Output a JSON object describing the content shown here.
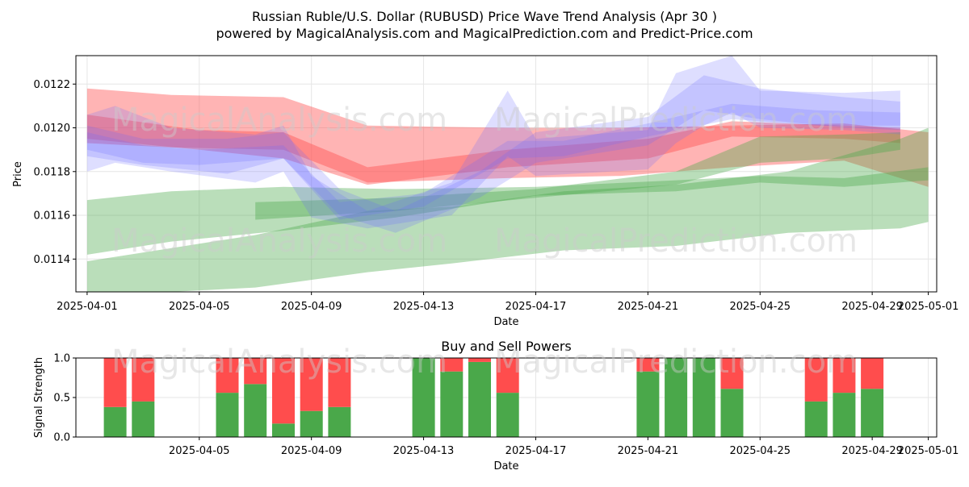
{
  "title": {
    "line1": "Russian Ruble/U.S. Dollar (RUBUSD) Price Wave Trend Analysis (Apr 30 )",
    "line2": "powered by MagicalAnalysis.com and MagicalPrediction.com and Predict-Price.com"
  },
  "watermarks": [
    "MagicalAnalysis.com",
    "MagicalPrediction.com"
  ],
  "colors": {
    "red": "#ff4d4d",
    "green": "#4aa84a",
    "blue": "#6b6bff"
  },
  "chart_data": [
    {
      "type": "area",
      "title": "",
      "xlabel": "Date",
      "ylabel": "Price",
      "x_range_days": [
        -0.4,
        30.3
      ],
      "ylim": [
        0.01125,
        0.01233
      ],
      "x_ticks": [
        "2025-04-01",
        "2025-04-05",
        "2025-04-09",
        "2025-04-13",
        "2025-04-17",
        "2025-04-21",
        "2025-04-25",
        "2025-04-29",
        "2025-05-01"
      ],
      "y_ticks": [
        "0.0114",
        "0.0116",
        "0.0118",
        "0.0120",
        "0.0122"
      ],
      "grid": true,
      "bands": [
        {
          "color": "red",
          "x": [
            "2025-04-01",
            "2025-04-04",
            "2025-04-08",
            "2025-04-11",
            "2025-04-16",
            "2025-04-20",
            "2025-04-24",
            "2025-04-28",
            "2025-05-01"
          ],
          "upper": [
            0.01218,
            0.01215,
            0.01214,
            0.01201,
            0.012,
            0.012,
            0.01201,
            0.01202,
            0.01198
          ],
          "lower": [
            0.01193,
            0.01191,
            0.0119,
            0.01175,
            0.01177,
            0.01178,
            0.01182,
            0.01185,
            0.01173
          ]
        },
        {
          "color": "red",
          "x": [
            "2025-04-01",
            "2025-04-05",
            "2025-04-08",
            "2025-04-11",
            "2025-04-16",
            "2025-04-21",
            "2025-04-24",
            "2025-04-28",
            "2025-04-30"
          ],
          "upper": [
            0.01206,
            0.01199,
            0.01198,
            0.01182,
            0.0119,
            0.01195,
            0.01203,
            0.01201,
            0.012
          ],
          "lower": [
            0.01195,
            0.0119,
            0.01186,
            0.01174,
            0.01182,
            0.01186,
            0.01196,
            0.01195,
            0.01193
          ]
        },
        {
          "color": "green",
          "x": [
            "2025-04-01",
            "2025-04-04",
            "2025-04-08",
            "2025-04-12",
            "2025-04-17",
            "2025-04-22",
            "2025-04-25",
            "2025-04-28",
            "2025-05-01"
          ],
          "upper": [
            0.01167,
            0.01171,
            0.01173,
            0.01172,
            0.01173,
            0.01176,
            0.01178,
            0.01177,
            0.01182
          ],
          "lower": [
            0.01142,
            0.01148,
            0.01153,
            0.01159,
            0.01169,
            0.01171,
            0.01175,
            0.01173,
            0.01176
          ]
        },
        {
          "color": "green",
          "x": [
            "2025-04-01",
            "2025-04-04",
            "2025-04-07",
            "2025-04-11",
            "2025-04-14",
            "2025-04-18",
            "2025-04-22",
            "2025-04-26",
            "2025-04-30",
            "2025-05-01"
          ],
          "upper": [
            0.01139,
            0.01145,
            0.01151,
            0.01162,
            0.01164,
            0.01171,
            0.01174,
            0.0118,
            0.01195,
            0.012
          ],
          "lower": [
            0.01125,
            0.01125,
            0.01127,
            0.01134,
            0.01138,
            0.01144,
            0.01146,
            0.01152,
            0.01154,
            0.01157
          ]
        },
        {
          "color": "green",
          "x": [
            "2025-04-07",
            "2025-04-12",
            "2025-04-17",
            "2025-04-22",
            "2025-04-25",
            "2025-04-28",
            "2025-04-30"
          ],
          "upper": [
            0.01166,
            0.01168,
            0.01172,
            0.0118,
            0.01196,
            0.01197,
            0.01198
          ],
          "lower": [
            0.01158,
            0.01162,
            0.01168,
            0.01174,
            0.01184,
            0.01186,
            0.0119
          ]
        },
        {
          "color": "blue",
          "x": [
            "2025-04-01",
            "2025-04-02",
            "2025-04-04",
            "2025-04-07",
            "2025-04-08",
            "2025-04-09",
            "2025-04-11",
            "2025-04-14",
            "2025-04-16",
            "2025-04-17",
            "2025-04-21",
            "2025-04-22",
            "2025-04-23",
            "2025-04-24",
            "2025-04-25",
            "2025-04-28",
            "2025-04-30"
          ],
          "upper": [
            0.01206,
            0.0121,
            0.012,
            0.01197,
            0.01201,
            0.01178,
            0.01162,
            0.01175,
            0.01217,
            0.01195,
            0.01199,
            0.01225,
            0.01229,
            0.01233,
            0.01217,
            0.01216,
            0.01217
          ],
          "lower": [
            0.0118,
            0.01184,
            0.0118,
            0.01175,
            0.0118,
            0.01159,
            0.01154,
            0.0116,
            0.01187,
            0.01178,
            0.01181,
            0.01193,
            0.01201,
            0.01207,
            0.012,
            0.01199,
            0.01197
          ]
        },
        {
          "color": "blue",
          "x": [
            "2025-04-01",
            "2025-04-03",
            "2025-04-06",
            "2025-04-08",
            "2025-04-10",
            "2025-04-12",
            "2025-04-15",
            "2025-04-17",
            "2025-04-21",
            "2025-04-23",
            "2025-04-25",
            "2025-04-28",
            "2025-04-30"
          ],
          "upper": [
            0.01201,
            0.01195,
            0.01195,
            0.01198,
            0.01172,
            0.01162,
            0.0118,
            0.01198,
            0.01205,
            0.01224,
            0.01218,
            0.01214,
            0.01212
          ],
          "lower": [
            0.01187,
            0.01183,
            0.01179,
            0.01186,
            0.0116,
            0.01152,
            0.01168,
            0.01184,
            0.01192,
            0.01208,
            0.01204,
            0.012,
            0.01199
          ]
        },
        {
          "color": "blue",
          "x": [
            "2025-04-01",
            "2025-04-03",
            "2025-04-05",
            "2025-04-08",
            "2025-04-10",
            "2025-04-13",
            "2025-04-16",
            "2025-04-18",
            "2025-04-21",
            "2025-04-24",
            "2025-04-27",
            "2025-04-30"
          ],
          "upper": [
            0.01198,
            0.01192,
            0.0119,
            0.01192,
            0.01166,
            0.0117,
            0.01194,
            0.01194,
            0.01202,
            0.01211,
            0.01208,
            0.01207
          ],
          "lower": [
            0.0119,
            0.01184,
            0.01183,
            0.01186,
            0.01158,
            0.01164,
            0.01186,
            0.01187,
            0.01196,
            0.01204,
            0.01201,
            0.01201
          ]
        }
      ]
    },
    {
      "type": "bar",
      "title": "Buy and Sell Powers",
      "xlabel": "Date",
      "ylabel": "Signal Strength",
      "ylim": [
        0,
        1
      ],
      "y_ticks": [
        "0.0",
        "0.5",
        "1.0"
      ],
      "x_ticks": [
        "2025-04-05",
        "2025-04-09",
        "2025-04-13",
        "2025-04-17",
        "2025-04-21",
        "2025-04-25",
        "2025-04-29",
        "2025-05-01"
      ],
      "grid": true,
      "series": [
        {
          "name": "",
          "color": "green",
          "values": [
            0.38,
            0.45,
            0.56,
            0.67,
            0.17,
            0.33,
            0.38,
            1.0,
            0.83,
            0.95,
            0.56,
            0.83,
            1.0,
            1.0,
            0.61,
            0.45,
            0.56,
            0.61
          ]
        },
        {
          "name": "",
          "color": "red",
          "values": [
            0.62,
            0.55,
            0.44,
            0.33,
            0.83,
            0.67,
            0.62,
            0.0,
            0.17,
            0.05,
            0.44,
            0.17,
            0.0,
            0.0,
            0.39,
            0.55,
            0.44,
            0.39
          ]
        }
      ],
      "categories": [
        "2025-04-02",
        "2025-04-03",
        "2025-04-06",
        "2025-04-07",
        "2025-04-08",
        "2025-04-09",
        "2025-04-10",
        "2025-04-13",
        "2025-04-14",
        "2025-04-15",
        "2025-04-16",
        "2025-04-21",
        "2025-04-22",
        "2025-04-23",
        "2025-04-24",
        "2025-04-27",
        "2025-04-28",
        "2025-04-29"
      ]
    }
  ]
}
